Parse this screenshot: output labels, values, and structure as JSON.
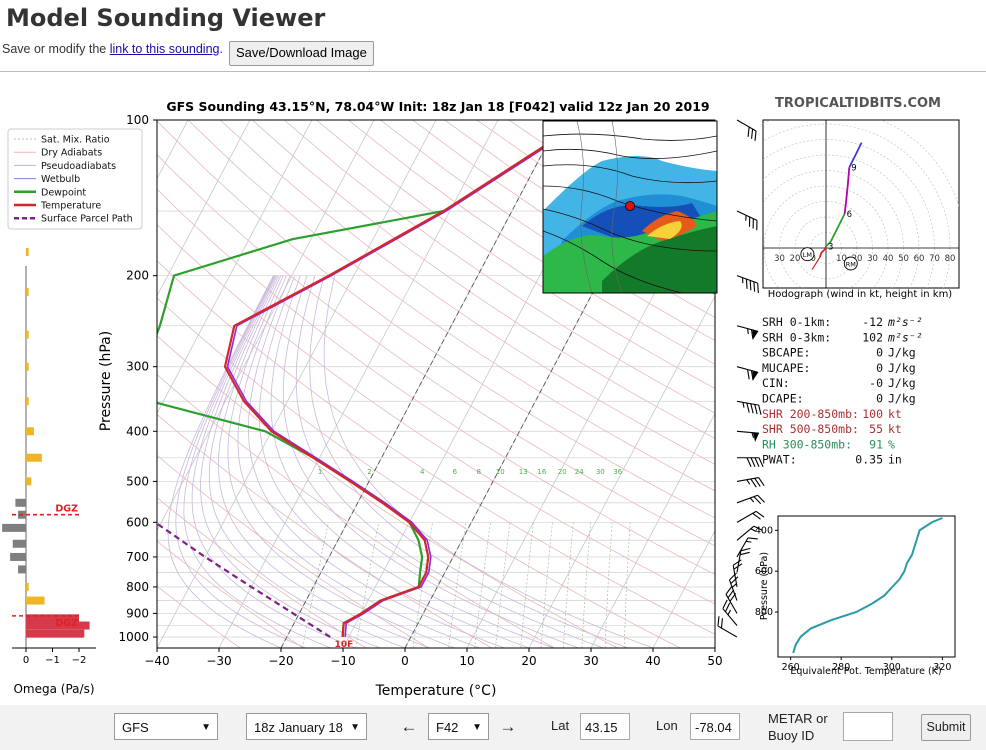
{
  "header": {
    "title": "Model Sounding Viewer",
    "save_text": "Save or modify the",
    "link_text": "link to this sounding",
    "save_suffix": ".",
    "save_button": "Save/Download Image"
  },
  "sounding": {
    "title": "GFS Sounding 43.15°N, 78.04°W Init: 18z Jan 18 [F042] valid 12z Jan 20 2019",
    "brand": "TROPICALTIDBITS.COM",
    "xlabel": "Temperature (°C)",
    "ylabel": "Pressure (hPa)",
    "x_ticks": [
      "−40",
      "−30",
      "−20",
      "−10",
      "0",
      "10",
      "20",
      "30",
      "40",
      "50"
    ],
    "y_ticks": [
      "100",
      "200",
      "300",
      "400",
      "500",
      "600",
      "700",
      "800",
      "900",
      "1000"
    ],
    "surface_label": "10F",
    "mix_labels": [
      "1",
      "2",
      "4",
      "6",
      "8",
      "10",
      "13",
      "16",
      "20",
      "24",
      "30",
      "36"
    ],
    "legend": [
      {
        "label": "Sat. Mix. Ratio",
        "color": "#bfbfbf"
      },
      {
        "label": "Dry Adiabats",
        "color": "#e8b8b8"
      },
      {
        "label": "Pseudoadiabats",
        "color": "#c5b2d6"
      },
      {
        "label": "Wetbulb",
        "color": "#7f7fd6"
      },
      {
        "label": "Dewpoint",
        "color": "#2ca02c"
      },
      {
        "label": "Temperature",
        "color": "#d62728"
      },
      {
        "label": "Surface Parcel Path",
        "color": "#7f1f8a"
      }
    ],
    "colors": {
      "temperature": "#d62728",
      "dewpoint": "#2ca02c",
      "wetbulb": "#8a2be2",
      "parcel": "#7f1f8a",
      "omega_up": "#f0b429",
      "omega_down": "#7f7f7f",
      "dgz": "#e02020"
    },
    "temperature_profile": [
      [
        100,
        -16
      ],
      [
        150,
        -31
      ],
      [
        200,
        -44
      ],
      [
        250,
        -55
      ],
      [
        300,
        -53
      ],
      [
        350,
        -47
      ],
      [
        400,
        -40
      ],
      [
        450,
        -31
      ],
      [
        500,
        -23
      ],
      [
        550,
        -16
      ],
      [
        600,
        -10
      ],
      [
        650,
        -6
      ],
      [
        700,
        -4
      ],
      [
        750,
        -3
      ],
      [
        800,
        -3
      ],
      [
        850,
        -8
      ],
      [
        900,
        -10
      ],
      [
        940,
        -12
      ],
      [
        1000,
        -11
      ]
    ],
    "dewpoint_profile": [
      [
        100,
        -16
      ],
      [
        150,
        -31
      ],
      [
        170,
        -53
      ],
      [
        200,
        -69
      ],
      [
        250,
        -67
      ],
      [
        300,
        -66
      ],
      [
        350,
        -62
      ],
      [
        400,
        -41
      ],
      [
        450,
        -31
      ],
      [
        500,
        -23
      ],
      [
        550,
        -16
      ],
      [
        600,
        -10
      ],
      [
        650,
        -7
      ],
      [
        700,
        -5
      ],
      [
        750,
        -4
      ],
      [
        800,
        -3
      ],
      [
        850,
        -8
      ],
      [
        900,
        -10
      ],
      [
        940,
        -12
      ],
      [
        1000,
        -11
      ]
    ],
    "parcel_path": [
      [
        1000,
        -13
      ],
      [
        900,
        -21
      ],
      [
        800,
        -30
      ],
      [
        700,
        -40
      ],
      [
        600,
        -51
      ],
      [
        500,
        -63
      ],
      [
        450,
        -70
      ]
    ],
    "omega": [
      {
        "p": 180,
        "v": -0.1
      },
      {
        "p": 215,
        "v": -0.1
      },
      {
        "p": 260,
        "v": -0.1
      },
      {
        "p": 300,
        "v": -0.1
      },
      {
        "p": 350,
        "v": -0.1
      },
      {
        "p": 400,
        "v": -0.3
      },
      {
        "p": 450,
        "v": -0.6
      },
      {
        "p": 500,
        "v": -0.2
      },
      {
        "p": 550,
        "v": 0.4
      },
      {
        "p": 580,
        "v": 0.3
      },
      {
        "p": 615,
        "v": 0.9
      },
      {
        "p": 660,
        "v": 0.5
      },
      {
        "p": 700,
        "v": 0.6
      },
      {
        "p": 740,
        "v": 0.3
      },
      {
        "p": 800,
        "v": -0.1
      },
      {
        "p": 850,
        "v": -0.7
      },
      {
        "p": 920,
        "v": -2.0
      },
      {
        "p": 950,
        "v": -2.4
      },
      {
        "p": 985,
        "v": -2.2
      }
    ],
    "omega_xticks": [
      "0",
      "−1",
      "−2"
    ],
    "omega_label": "Omega (Pa/s)",
    "dgz_label": "DGZ",
    "dgz_levels": [
      580,
      910
    ],
    "wind_barbs": [
      {
        "p": 100,
        "dir": 300,
        "kt": 30
      },
      {
        "p": 150,
        "dir": 295,
        "kt": 35
      },
      {
        "p": 200,
        "dir": 290,
        "kt": 45
      },
      {
        "p": 250,
        "dir": 285,
        "kt": 65
      },
      {
        "p": 300,
        "dir": 285,
        "kt": 70
      },
      {
        "p": 350,
        "dir": 280,
        "kt": 45
      },
      {
        "p": 400,
        "dir": 275,
        "kt": 55
      },
      {
        "p": 450,
        "dir": 270,
        "kt": 40
      },
      {
        "p": 500,
        "dir": 260,
        "kt": 35
      },
      {
        "p": 550,
        "dir": 250,
        "kt": 25
      },
      {
        "p": 600,
        "dir": 240,
        "kt": 20
      },
      {
        "p": 650,
        "dir": 230,
        "kt": 15
      },
      {
        "p": 700,
        "dir": 210,
        "kt": 15
      },
      {
        "p": 750,
        "dir": 190,
        "kt": 20
      },
      {
        "p": 800,
        "dir": 170,
        "kt": 20
      },
      {
        "p": 850,
        "dir": 160,
        "kt": 25
      },
      {
        "p": 900,
        "dir": 150,
        "kt": 30
      },
      {
        "p": 950,
        "dir": 140,
        "kt": 25
      },
      {
        "p": 1000,
        "dir": 120,
        "kt": 20
      }
    ]
  },
  "hodograph": {
    "caption": "Hodograph (wind in kt, height in km)",
    "ring_labels": [
      "30",
      "20",
      "10",
      "10",
      "20",
      "30",
      "40",
      "50",
      "60",
      "70",
      "80"
    ],
    "height_labels": [
      "3",
      "6",
      "9"
    ],
    "markers": [
      "LM",
      "RM"
    ],
    "trace_colors": [
      "#d62728",
      "#2ca02c",
      "#b300b3",
      "#3b3bd6"
    ],
    "segments": [
      [
        [
          -4,
          -6
        ],
        [
          -3,
          -3
        ],
        [
          -1,
          -1
        ],
        [
          0,
          1
        ]
      ],
      [
        [
          0,
          1
        ],
        [
          3,
          4
        ],
        [
          6,
          10
        ],
        [
          10,
          18
        ],
        [
          12,
          22
        ]
      ],
      [
        [
          12,
          22
        ],
        [
          13,
          30
        ],
        [
          14,
          40
        ],
        [
          15,
          52
        ]
      ],
      [
        [
          15,
          52
        ],
        [
          19,
          60
        ],
        [
          23,
          68
        ]
      ]
    ]
  },
  "indices": [
    {
      "label": "SRH 0-1km:",
      "value": "-12",
      "unit": "m²s⁻²",
      "color": "#111"
    },
    {
      "label": "SRH 0-3km:",
      "value": "102",
      "unit": "m²s⁻²",
      "color": "#111"
    },
    {
      "label": "SBCAPE:",
      "value": "0",
      "unit": "J/kg",
      "color": "#111"
    },
    {
      "label": "MUCAPE:",
      "value": "0",
      "unit": "J/kg",
      "color": "#111"
    },
    {
      "label": "CIN:",
      "value": "-0",
      "unit": "J/kg",
      "color": "#111"
    },
    {
      "label": "DCAPE:",
      "value": "0",
      "unit": "J/kg",
      "color": "#111"
    },
    {
      "label": "SHR 200-850mb:",
      "value": "100",
      "unit": "kt",
      "color": "#a83232"
    },
    {
      "label": "SHR 500-850mb:",
      "value": "55",
      "unit": "kt",
      "color": "#a83232"
    },
    {
      "label": "RH 300-850mb:",
      "value": "91",
      "unit": "%",
      "color": "#2a8f5a"
    },
    {
      "label": "PWAT:",
      "value": "0.35",
      "unit": "in",
      "color": "#111"
    }
  ],
  "theta_e": {
    "xlabel": "Equivalent Pot. Temperature (K)",
    "ylabel": "Pressure (hPa)",
    "x_ticks": [
      "260",
      "280",
      "300",
      "320"
    ],
    "y_ticks": [
      "400",
      "600",
      "800"
    ],
    "color": "#2a9aa8",
    "profile": [
      [
        1000,
        261
      ],
      [
        960,
        262
      ],
      [
        920,
        264
      ],
      [
        880,
        268
      ],
      [
        840,
        276
      ],
      [
        800,
        286
      ],
      [
        760,
        292
      ],
      [
        720,
        297
      ],
      [
        680,
        300
      ],
      [
        640,
        303
      ],
      [
        600,
        305
      ],
      [
        560,
        306
      ],
      [
        520,
        308
      ],
      [
        480,
        309
      ],
      [
        440,
        310
      ],
      [
        400,
        311
      ],
      [
        360,
        316
      ],
      [
        340,
        320
      ]
    ]
  },
  "controls": {
    "model": "GFS",
    "run": "18z January 18",
    "prev_icon": "←",
    "forecast_hour": "F42",
    "next_icon": "→",
    "lat_label": "Lat",
    "lat_value": "43.15",
    "lon_label": "Lon",
    "lon_value": "-78.04",
    "metar_label": "METAR or Buoy ID",
    "metar_value": "",
    "submit": "Submit"
  }
}
